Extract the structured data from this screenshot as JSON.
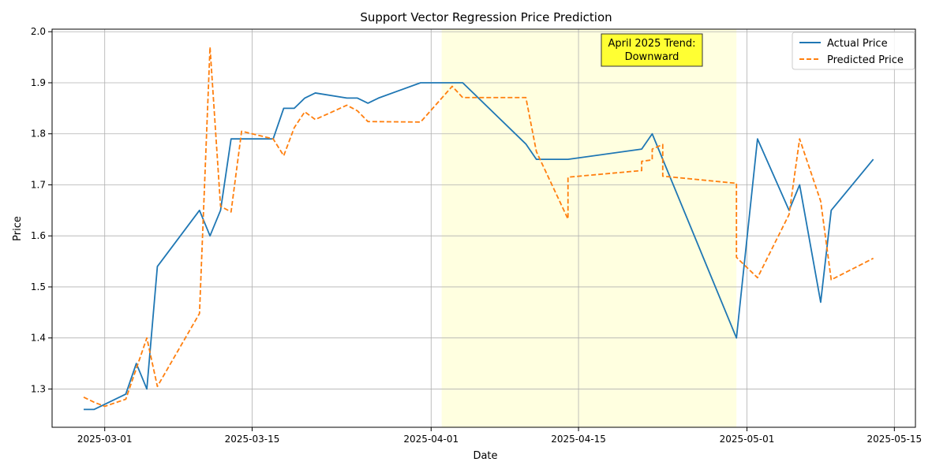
{
  "chart_data": {
    "type": "line",
    "title": "Support Vector Regression Price Prediction",
    "xlabel": "Date",
    "ylabel": "Price",
    "xlim": [
      "2025-02-24",
      "2025-05-17"
    ],
    "ylim": [
      1.225,
      2.005
    ],
    "x_ticks": [
      "2025-03-01",
      "2025-03-15",
      "2025-04-01",
      "2025-04-15",
      "2025-05-01",
      "2025-05-15"
    ],
    "y_ticks": [
      1.3,
      1.4,
      1.5,
      1.6,
      1.7,
      1.8,
      1.9,
      2.0
    ],
    "y_tick_labels": [
      "1.3",
      "1.4",
      "1.5",
      "1.6",
      "1.7",
      "1.8",
      "1.9",
      "2.0"
    ],
    "grid": true,
    "legend_position": "top-right",
    "highlight_span": {
      "start": "2025-04-02",
      "end": "2025-04-30",
      "color": "#ffffe0"
    },
    "annotation": {
      "lines": [
        "April 2025 Trend:",
        "Downward"
      ],
      "x": "2025-04-21",
      "y": 1.945,
      "bg_color": "#ffff33"
    },
    "series": [
      {
        "name": "Actual Price",
        "color": "#1f77b4",
        "dash": "solid",
        "points": [
          [
            "2025-02-27",
            1.26
          ],
          [
            "2025-02-28",
            1.26
          ],
          [
            "2025-03-03",
            1.29
          ],
          [
            "2025-03-04",
            1.35
          ],
          [
            "2025-03-05",
            1.3
          ],
          [
            "2025-03-06",
            1.54
          ],
          [
            "2025-03-10",
            1.65
          ],
          [
            "2025-03-11",
            1.6
          ],
          [
            "2025-03-12",
            1.65
          ],
          [
            "2025-03-13",
            1.79
          ],
          [
            "2025-03-17",
            1.79
          ],
          [
            "2025-03-18",
            1.85
          ],
          [
            "2025-03-19",
            1.85
          ],
          [
            "2025-03-20",
            1.87
          ],
          [
            "2025-03-21",
            1.88
          ],
          [
            "2025-03-24",
            1.87
          ],
          [
            "2025-03-25",
            1.87
          ],
          [
            "2025-03-26",
            1.86
          ],
          [
            "2025-03-27",
            1.87
          ],
          [
            "2025-03-31",
            1.9
          ],
          [
            "2025-04-01",
            1.9
          ],
          [
            "2025-04-02",
            1.9
          ],
          [
            "2025-04-03",
            1.9
          ],
          [
            "2025-04-04",
            1.9
          ],
          [
            "2025-04-10",
            1.78
          ],
          [
            "2025-04-11",
            1.75
          ],
          [
            "2025-04-14",
            1.75
          ],
          [
            "2025-04-21",
            1.77
          ],
          [
            "2025-04-22",
            1.8
          ],
          [
            "2025-04-30",
            1.4
          ],
          [
            "2025-05-02",
            1.79
          ],
          [
            "2025-05-05",
            1.65
          ],
          [
            "2025-05-06",
            1.7
          ],
          [
            "2025-05-08",
            1.47
          ],
          [
            "2025-05-09",
            1.65
          ],
          [
            "2025-05-13",
            1.75
          ]
        ]
      },
      {
        "name": "Predicted Price",
        "color": "#ff7f0e",
        "dash": "dashed",
        "points": [
          [
            "2025-02-27",
            1.284
          ],
          [
            "2025-02-28",
            1.274
          ],
          [
            "2025-03-01",
            1.266
          ],
          [
            "2025-03-03",
            1.28
          ],
          [
            "2025-03-05",
            1.4
          ],
          [
            "2025-03-06",
            1.305
          ],
          [
            "2025-03-10",
            1.448
          ],
          [
            "2025-03-11",
            1.97
          ],
          [
            "2025-03-12",
            1.658
          ],
          [
            "2025-03-13",
            1.647
          ],
          [
            "2025-03-14",
            1.805
          ],
          [
            "2025-03-17",
            1.79
          ],
          [
            "2025-03-18",
            1.757
          ],
          [
            "2025-03-19",
            1.812
          ],
          [
            "2025-03-20",
            1.843
          ],
          [
            "2025-03-21",
            1.828
          ],
          [
            "2025-03-24",
            1.856
          ],
          [
            "2025-03-25",
            1.845
          ],
          [
            "2025-03-26",
            1.824
          ],
          [
            "2025-03-31",
            1.823
          ],
          [
            "2025-04-03",
            1.893
          ],
          [
            "2025-04-04",
            1.871
          ],
          [
            "2025-04-10",
            1.871
          ],
          [
            "2025-04-11",
            1.765
          ],
          [
            "2025-04-14",
            1.633
          ],
          [
            "2025-04-14",
            1.715
          ],
          [
            "2025-04-21",
            1.728
          ],
          [
            "2025-04-21",
            1.746
          ],
          [
            "2025-04-22",
            1.749
          ],
          [
            "2025-04-22",
            1.77
          ],
          [
            "2025-04-23",
            1.779
          ],
          [
            "2025-04-23",
            1.717
          ],
          [
            "2025-04-30",
            1.703
          ],
          [
            "2025-04-30",
            1.558
          ],
          [
            "2025-05-02",
            1.518
          ],
          [
            "2025-05-05",
            1.642
          ],
          [
            "2025-05-06",
            1.79
          ],
          [
            "2025-05-08",
            1.668
          ],
          [
            "2025-05-09",
            1.514
          ],
          [
            "2025-05-13",
            1.556
          ]
        ]
      }
    ]
  }
}
